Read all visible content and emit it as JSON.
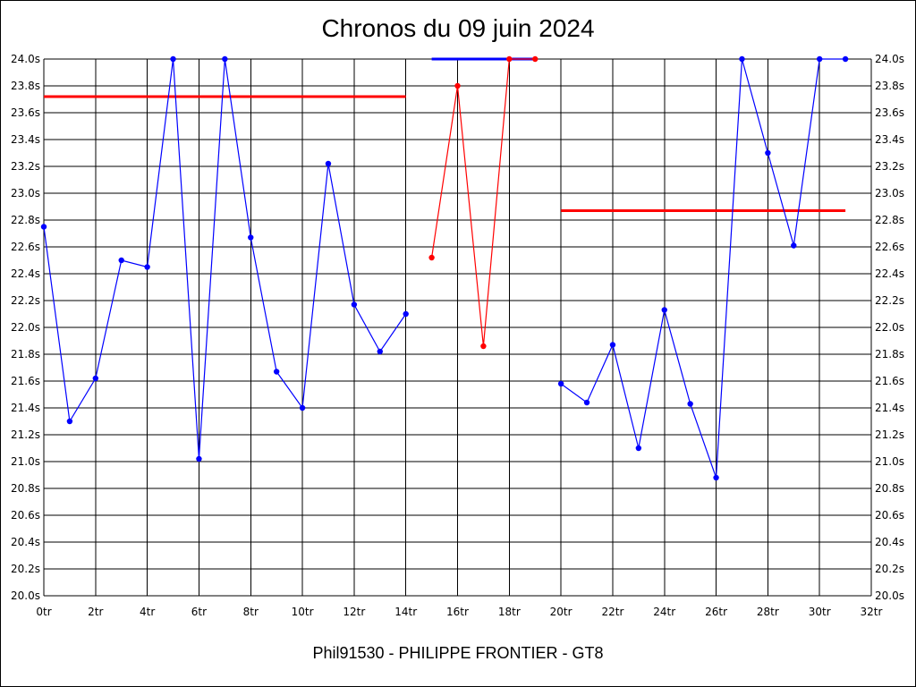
{
  "chart_data": {
    "type": "line",
    "title": "Chronos du 09 juin 2024",
    "footer": "Phil91530 - PHILIPPE FRONTIER - GT8",
    "xlabel": "",
    "ylabel": "",
    "xlim": [
      0,
      32
    ],
    "ylim": [
      20.0,
      24.0
    ],
    "x_ticks": [
      "0tr",
      "2tr",
      "4tr",
      "6tr",
      "8tr",
      "10tr",
      "12tr",
      "14tr",
      "16tr",
      "18tr",
      "20tr",
      "22tr",
      "24tr",
      "26tr",
      "28tr",
      "30tr",
      "32tr"
    ],
    "y_ticks": [
      "20.0s",
      "20.2s",
      "20.4s",
      "20.6s",
      "20.8s",
      "21.0s",
      "21.2s",
      "21.4s",
      "21.6s",
      "21.8s",
      "22.0s",
      "22.2s",
      "22.4s",
      "22.6s",
      "22.8s",
      "23.0s",
      "23.2s",
      "23.4s",
      "23.6s",
      "23.8s",
      "24.0s"
    ],
    "grid": true,
    "series": [
      {
        "color": "#0000ff",
        "points": [
          {
            "x": 0,
            "y": 22.75
          },
          {
            "x": 1,
            "y": 21.3
          },
          {
            "x": 2,
            "y": 21.62
          },
          {
            "x": 3,
            "y": 22.5
          },
          {
            "x": 4,
            "y": 22.45
          },
          {
            "x": 5,
            "y": 24.0
          },
          {
            "x": 6,
            "y": 21.02
          },
          {
            "x": 7,
            "y": 24.0
          },
          {
            "x": 8,
            "y": 22.67
          },
          {
            "x": 9,
            "y": 21.67
          },
          {
            "x": 10,
            "y": 21.4
          },
          {
            "x": 11,
            "y": 23.22
          },
          {
            "x": 12,
            "y": 22.17
          },
          {
            "x": 13,
            "y": 21.82
          },
          {
            "x": 14,
            "y": 22.1
          }
        ]
      },
      {
        "color": "#ff0000",
        "points": [
          {
            "x": 15,
            "y": 22.52
          },
          {
            "x": 16,
            "y": 23.8
          },
          {
            "x": 17,
            "y": 21.86
          },
          {
            "x": 18,
            "y": 24.0
          },
          {
            "x": 19,
            "y": 24.0
          }
        ]
      },
      {
        "color": "#0000ff",
        "points": [
          {
            "x": 20,
            "y": 21.58
          },
          {
            "x": 21,
            "y": 21.44
          },
          {
            "x": 22,
            "y": 21.87
          },
          {
            "x": 23,
            "y": 21.1
          },
          {
            "x": 24,
            "y": 22.13
          },
          {
            "x": 25,
            "y": 21.43
          },
          {
            "x": 26,
            "y": 20.88
          },
          {
            "x": 27,
            "y": 24.0
          },
          {
            "x": 28,
            "y": 23.3
          },
          {
            "x": 29,
            "y": 22.61
          },
          {
            "x": 30,
            "y": 24.0
          },
          {
            "x": 31,
            "y": 24.0
          }
        ]
      }
    ],
    "reference_lines": [
      {
        "x_start": 0,
        "x_end": 14,
        "y": 23.72,
        "color": "#ff0000"
      },
      {
        "x_start": 15,
        "x_end": 19,
        "y": 24.0,
        "color": "#0000ff"
      },
      {
        "x_start": 20,
        "x_end": 31,
        "y": 22.87,
        "color": "#ff0000"
      }
    ]
  }
}
